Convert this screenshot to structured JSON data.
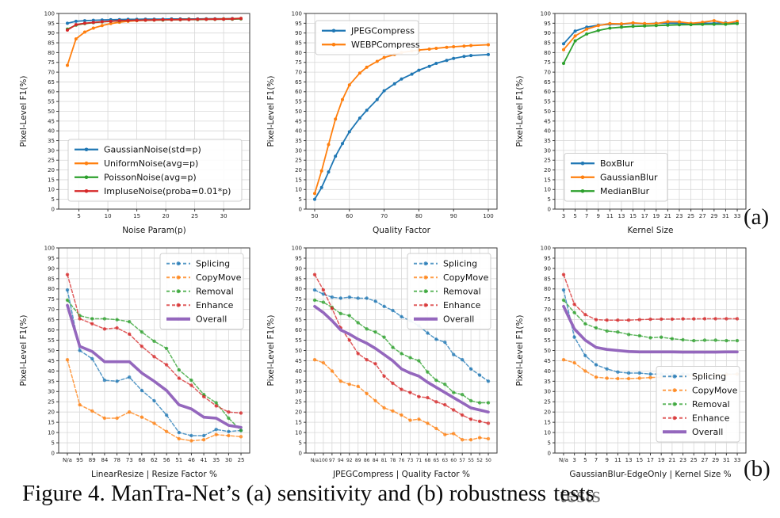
{
  "caption": {
    "text": "Figure 4. ManTra-Net’s (a) sensitivity and (b) robustness",
    "overlap_word": "tests"
  },
  "panel_labels": {
    "a": "(a)",
    "b": "(b)"
  },
  "colors": {
    "blue": "#1f77b4",
    "orange": "#ff7f0e",
    "green": "#2ca02c",
    "red": "#d62728",
    "purple": "#9467bd",
    "grid": "#d8d8d8",
    "spine": "#3a3a3a"
  },
  "chart_data": [
    {
      "id": "noise-sensitivity",
      "type": "line",
      "xlabel": "Noise Param(p)",
      "ylabel": "Pixel-Level F1(%)",
      "ylim": [
        0,
        100
      ],
      "ytick_step": 5,
      "x_mode": "numeric",
      "xlim": [
        1.5,
        34.5
      ],
      "x_ticks": [
        5,
        10,
        15,
        20,
        25,
        30
      ],
      "x": [
        3,
        4.5,
        6,
        7.5,
        9,
        10.5,
        12,
        13.5,
        15,
        16.5,
        18,
        19.5,
        21,
        22.5,
        24,
        25.5,
        27,
        28.5,
        30,
        31.5,
        33
      ],
      "legend": "lower left",
      "series": [
        {
          "name": "GaussianNoise(std=p)",
          "color": "#1f77b4",
          "line": "solid",
          "values": [
            95,
            96,
            96.3,
            96.5,
            96.7,
            96.8,
            96.9,
            97,
            97,
            97.1,
            97.1,
            97.1,
            97.2,
            97.2,
            97.2,
            97.2,
            97.3,
            97.3,
            97.3,
            97.4,
            97.5
          ]
        },
        {
          "name": "UniformNoise(avg=p)",
          "color": "#ff7f0e",
          "line": "solid",
          "values": [
            73.5,
            87,
            90.5,
            92.5,
            93.8,
            94.8,
            95.5,
            96,
            96.3,
            96.5,
            96.6,
            96.7,
            96.8,
            96.9,
            97,
            97,
            97.1,
            97.1,
            97.2,
            97.3,
            97.5
          ]
        },
        {
          "name": "PoissonNoise(avg=p)",
          "color": "#2ca02c",
          "line": "solid",
          "values": [
            92,
            94,
            94.8,
            95.3,
            95.7,
            96,
            96.2,
            96.4,
            96.5,
            96.6,
            96.7,
            96.7,
            96.8,
            96.8,
            96.9,
            96.9,
            97,
            97,
            97.1,
            97.1,
            97.2
          ]
        },
        {
          "name": "ImpluseNoise(proba=0.01*p)",
          "color": "#d62728",
          "line": "solid",
          "values": [
            91.5,
            94.3,
            95,
            95.4,
            95.8,
            96,
            96.3,
            96.4,
            96.5,
            96.6,
            96.7,
            96.8,
            96.8,
            96.9,
            96.9,
            97,
            97,
            97.1,
            97.1,
            97.2,
            97.4
          ]
        }
      ]
    },
    {
      "id": "compression-sensitivity",
      "type": "line",
      "xlabel": "Quality Factor",
      "ylabel": "Pixel-Level F1(%)",
      "ylim": [
        0,
        100
      ],
      "ytick_step": 5,
      "x_mode": "numeric",
      "xlim": [
        47.5,
        102.5
      ],
      "x_ticks": [
        50,
        60,
        70,
        80,
        90,
        100
      ],
      "x": [
        50,
        52,
        54,
        56,
        58,
        60,
        63,
        65,
        68,
        70,
        73,
        75,
        78,
        80,
        83,
        85,
        88,
        90,
        93,
        95,
        100
      ],
      "legend": "upper left",
      "series": [
        {
          "name": "JPEGCompress",
          "color": "#1f77b4",
          "line": "solid",
          "values": [
            5,
            11,
            19,
            27,
            33.5,
            39.5,
            46.5,
            50.5,
            56,
            60.5,
            64,
            66.5,
            69,
            71,
            73,
            74.5,
            76,
            77,
            78,
            78.5,
            79
          ]
        },
        {
          "name": "WEBPCompress",
          "color": "#ff7f0e",
          "line": "solid",
          "values": [
            8,
            19.5,
            33,
            46,
            56,
            63.5,
            69.5,
            72.5,
            75.5,
            77.5,
            79,
            80,
            80.8,
            81.3,
            81.8,
            82.2,
            82.7,
            83,
            83.3,
            83.6,
            84
          ]
        }
      ]
    },
    {
      "id": "blur-sensitivity",
      "type": "line",
      "xlabel": "Kernel Size",
      "ylabel": "Pixel-Level F1(%)",
      "ylim": [
        0,
        100
      ],
      "ytick_step": 5,
      "x_mode": "category",
      "x_labels": [
        "3",
        "5",
        "7",
        "9",
        "11",
        "13",
        "15",
        "17",
        "19",
        "21",
        "23",
        "25",
        "27",
        "29",
        "31",
        "33"
      ],
      "legend": "lower left",
      "series": [
        {
          "name": "BoxBlur",
          "color": "#1f77b4",
          "line": "solid",
          "values": [
            84.5,
            91,
            93,
            94,
            94.5,
            94.5,
            95,
            94.7,
            95,
            95,
            95,
            94.6,
            95,
            95,
            95.3,
            95
          ]
        },
        {
          "name": "GaussianBlur",
          "color": "#ff7f0e",
          "line": "solid",
          "values": [
            81.5,
            88.5,
            92,
            93.8,
            94.8,
            94.7,
            95.2,
            94.8,
            94.8,
            95.8,
            95.7,
            95,
            95.5,
            96.3,
            95,
            96
          ]
        },
        {
          "name": "MedianBlur",
          "color": "#2ca02c",
          "line": "solid",
          "values": [
            74.5,
            86,
            89.5,
            91.3,
            92.5,
            93,
            93.4,
            93.6,
            93.8,
            94,
            94.2,
            94.3,
            94.4,
            94.5,
            94.5,
            94.8
          ]
        }
      ]
    },
    {
      "id": "robustness-linear-resize",
      "type": "line",
      "xlabel": "LinearResize | Resize Factor %",
      "ylabel": "Pixel-Level F1(%)",
      "ylim": [
        0,
        100
      ],
      "ytick_step": 5,
      "x_mode": "category",
      "x_labels": [
        "N/a",
        "95",
        "89",
        "84",
        "78",
        "73",
        "68",
        "62",
        "56",
        "51",
        "46",
        "41",
        "35",
        "30",
        "25"
      ],
      "legend": "upper right",
      "series": [
        {
          "name": "Splicing",
          "color": "#1f77b4",
          "line": "dashed",
          "values": [
            79.5,
            50,
            46,
            35.5,
            35,
            37,
            30.5,
            25.5,
            18.5,
            10,
            8.5,
            8.5,
            11.5,
            10.5,
            11
          ]
        },
        {
          "name": "CopyMove",
          "color": "#ff7f0e",
          "line": "dashed",
          "values": [
            45.5,
            23.5,
            20.5,
            17,
            17,
            20,
            17.5,
            14.5,
            10.5,
            7,
            6,
            6.5,
            9,
            8.5,
            8
          ]
        },
        {
          "name": "Removal",
          "color": "#2ca02c",
          "line": "dashed",
          "values": [
            74.5,
            67,
            65.5,
            65.5,
            65,
            64,
            59,
            54.5,
            51,
            40.5,
            35.5,
            28.5,
            24.5,
            17,
            11
          ]
        },
        {
          "name": "Enhance",
          "color": "#d62728",
          "line": "dashed",
          "values": [
            87,
            65.5,
            63,
            60.5,
            61,
            58,
            52,
            47,
            43,
            36.5,
            33,
            27.5,
            23,
            20,
            19.5
          ]
        },
        {
          "name": "Overall",
          "color": "#9467bd",
          "line": "bold",
          "values": [
            72,
            52,
            49.5,
            44.5,
            44.5,
            44.5,
            39,
            35,
            30.5,
            23.5,
            21.5,
            17.5,
            17,
            13.5,
            12.5
          ]
        }
      ]
    },
    {
      "id": "robustness-jpeg-compress",
      "type": "line",
      "xlabel": "JPEGCompress | Quality Factor %",
      "ylabel": "Pixel-Level F1(%)",
      "ylim": [
        0,
        100
      ],
      "ytick_step": 5,
      "x_mode": "category",
      "x_labels": [
        "N/a",
        "100",
        "97",
        "94",
        "92",
        "89",
        "86",
        "84",
        "81",
        "78",
        "76",
        "73",
        "71",
        "68",
        "65",
        "63",
        "60",
        "57",
        "55",
        "52",
        "50"
      ],
      "legend": "upper right",
      "series": [
        {
          "name": "Splicing",
          "color": "#1f77b4",
          "line": "dashed",
          "values": [
            79.5,
            77.5,
            76,
            75.5,
            76,
            75.5,
            75.5,
            74,
            71.5,
            69.5,
            66.5,
            64.5,
            62,
            58.5,
            55.5,
            54,
            48,
            45.5,
            41,
            38,
            35
          ]
        },
        {
          "name": "CopyMove",
          "color": "#ff7f0e",
          "line": "dashed",
          "values": [
            45.5,
            44,
            40,
            35,
            33.5,
            32.5,
            29,
            25.5,
            22,
            20.5,
            18.5,
            16,
            16.5,
            14.5,
            12,
            9,
            9.5,
            6.5,
            6.5,
            7.5,
            7
          ]
        },
        {
          "name": "Removal",
          "color": "#2ca02c",
          "line": "dashed",
          "values": [
            74.5,
            73.5,
            71,
            68,
            67,
            63.5,
            60.5,
            59,
            56.5,
            51.5,
            48.5,
            46.5,
            45,
            39.5,
            35.5,
            33.5,
            29.5,
            28.5,
            25.5,
            24.5,
            24.5
          ]
        },
        {
          "name": "Enhance",
          "color": "#d62728",
          "line": "dashed",
          "values": [
            87,
            79.5,
            70.5,
            61,
            55,
            48.5,
            45.5,
            43.5,
            37.5,
            34,
            31,
            29.5,
            27.5,
            27,
            25,
            23.5,
            21,
            18.5,
            16.5,
            15.5,
            14.5
          ]
        },
        {
          "name": "Overall",
          "color": "#9467bd",
          "line": "bold",
          "values": [
            71.5,
            68.5,
            64.5,
            60,
            58,
            55.5,
            53.5,
            51,
            48,
            45,
            41,
            39,
            37.5,
            34.5,
            32,
            29.5,
            27,
            24.5,
            22,
            21,
            20
          ]
        }
      ]
    },
    {
      "id": "robustness-gaussianblur-edgeonly",
      "type": "line",
      "xlabel": "GaussianBlur-EdgeOnly | Kernel Size %",
      "ylabel": "Pixel-Level F1(%)",
      "ylim": [
        0,
        100
      ],
      "ytick_step": 5,
      "x_mode": "category",
      "x_labels": [
        "N/a",
        "3",
        "5",
        "7",
        "9",
        "11",
        "13",
        "15",
        "17",
        "19",
        "21",
        "23",
        "25",
        "27",
        "29",
        "31",
        "33"
      ],
      "legend": "lower right",
      "series": [
        {
          "name": "Splicing",
          "color": "#1f77b4",
          "line": "dashed",
          "values": [
            79.5,
            56.5,
            47.5,
            43,
            41,
            39.5,
            39,
            39,
            38.5,
            38.5,
            38.5,
            38.5,
            38.5,
            38,
            38,
            38.5,
            38.5
          ]
        },
        {
          "name": "CopyMove",
          "color": "#ff7f0e",
          "line": "dashed",
          "values": [
            45.5,
            44,
            40,
            37,
            36.5,
            36.3,
            36.3,
            36.5,
            36.8,
            37,
            37.5,
            37.5,
            38,
            38,
            38,
            38.3,
            38.5
          ]
        },
        {
          "name": "Removal",
          "color": "#2ca02c",
          "line": "dashed",
          "values": [
            74.5,
            68.5,
            63,
            61,
            59.5,
            59,
            57.8,
            57.2,
            56.2,
            56.5,
            55.7,
            55.2,
            54.8,
            55,
            55,
            54.8,
            54.8
          ]
        },
        {
          "name": "Enhance",
          "color": "#d62728",
          "line": "dashed",
          "values": [
            87,
            72.5,
            67.5,
            65,
            64.8,
            64.8,
            64.8,
            65,
            65.2,
            65.3,
            65.3,
            65.4,
            65.4,
            65.5,
            65.5,
            65.5,
            65.5
          ]
        },
        {
          "name": "Overall",
          "color": "#9467bd",
          "line": "bold",
          "values": [
            71.5,
            60.5,
            55,
            51.5,
            50.5,
            50,
            49.5,
            49.3,
            49.3,
            49.3,
            49.3,
            49.2,
            49.2,
            49.2,
            49.2,
            49.3,
            49.3
          ]
        }
      ]
    }
  ]
}
